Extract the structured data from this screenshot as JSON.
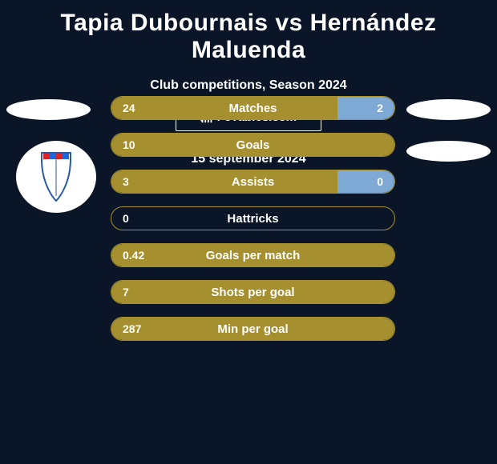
{
  "title": "Tapia Dubournais vs Hernández Maluenda",
  "subtitle": "Club competitions, Season 2024",
  "date": "15 september 2024",
  "watermark": "FcTables.com",
  "colors": {
    "background": "#0a1628",
    "left_fill": "#a58f2e",
    "right_fill": "#7da9d4",
    "border": "#a58f2e",
    "text": "#ffffff"
  },
  "stats": [
    {
      "label": "Matches",
      "left_val": "24",
      "right_val": "2",
      "left_pct": 80,
      "right_pct": 20,
      "show_right": true
    },
    {
      "label": "Goals",
      "left_val": "10",
      "right_val": "",
      "left_pct": 100,
      "right_pct": 0,
      "show_right": false
    },
    {
      "label": "Assists",
      "left_val": "3",
      "right_val": "0",
      "left_pct": 80,
      "right_pct": 20,
      "show_right": true
    },
    {
      "label": "Hattricks",
      "left_val": "0",
      "right_val": "",
      "left_pct": 0,
      "right_pct": 0,
      "show_right": false
    },
    {
      "label": "Goals per match",
      "left_val": "0.42",
      "right_val": "",
      "left_pct": 100,
      "right_pct": 0,
      "show_right": false
    },
    {
      "label": "Shots per goal",
      "left_val": "7",
      "right_val": "",
      "left_pct": 100,
      "right_pct": 0,
      "show_right": false
    },
    {
      "label": "Min per goal",
      "left_val": "287",
      "right_val": "",
      "left_pct": 100,
      "right_pct": 0,
      "show_right": false
    }
  ]
}
